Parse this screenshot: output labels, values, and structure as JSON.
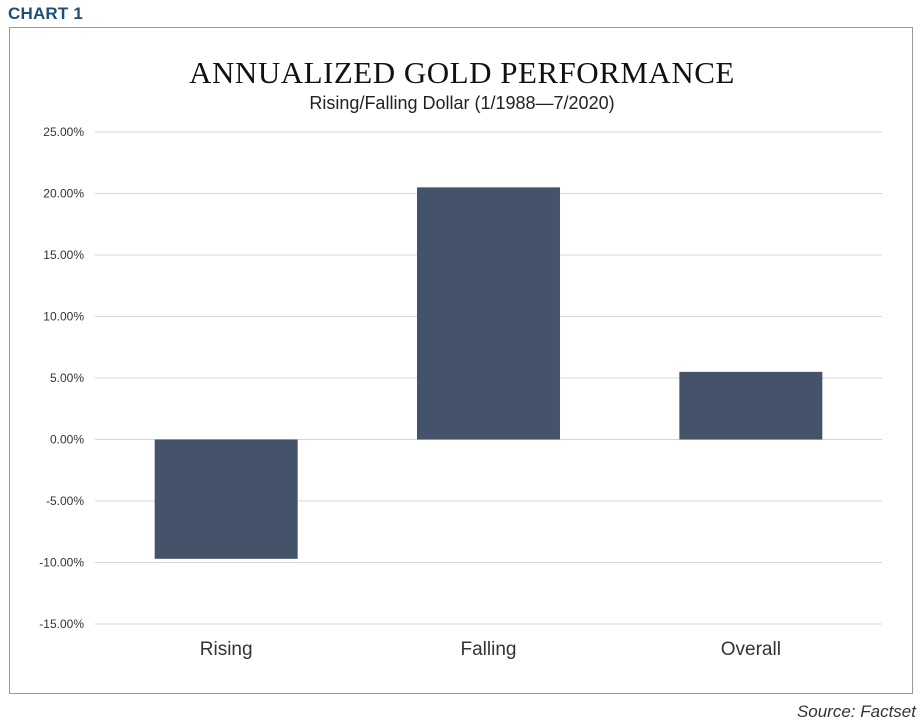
{
  "header": {
    "chart_label": "CHART 1"
  },
  "chart_data": {
    "type": "bar",
    "title": "ANNUALIZED GOLD PERFORMANCE",
    "subtitle": "Rising/Falling Dollar (1/1988—7/2020)",
    "categories": [
      "Rising",
      "Falling",
      "Overall"
    ],
    "values": [
      -9.7,
      20.5,
      5.5
    ],
    "ylim": [
      -15,
      25
    ],
    "yticks": [
      25,
      20,
      15,
      10,
      5,
      0,
      -5,
      -10,
      -15
    ],
    "ytick_labels": [
      "25.00%",
      "20.00%",
      "15.00%",
      "10.00%",
      "5.00%",
      "0.00%",
      "-5.00%",
      "-10.00%",
      "-15.00%"
    ],
    "grid": true,
    "bar_color": "#44536a",
    "xlabel": "",
    "ylabel": ""
  },
  "footer": {
    "source": "Source: Factset"
  }
}
